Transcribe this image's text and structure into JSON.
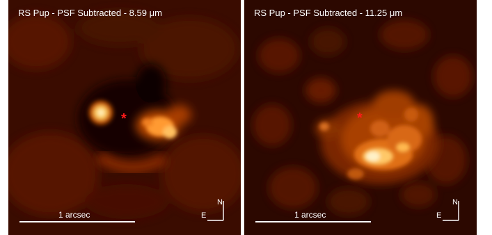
{
  "panels": [
    {
      "title": "RS Pup - PSF Subtracted - 8.59 μm",
      "scalebar_label": "1 arcsec",
      "compass_north": "N",
      "compass_east": "E",
      "star_marker": "*"
    },
    {
      "title": "RS Pup - PSF Subtracted - 11.25 μm",
      "scalebar_label": "1 arcsec",
      "compass_north": "N",
      "compass_east": "E",
      "star_marker": "*"
    }
  ],
  "colors": {
    "background": "#1a0400",
    "glow_mid": "#b84a00",
    "glow_bright": "#ffb040",
    "glow_peak": "#fff6d0",
    "star": "#ff1a1a"
  }
}
